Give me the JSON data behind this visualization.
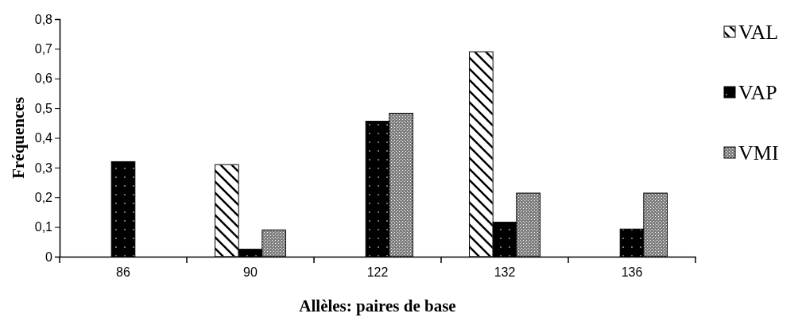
{
  "chart_data": {
    "type": "bar",
    "xlabel": "Allèles: paires de base",
    "ylabel": "Fréquences",
    "categories": [
      "86",
      "90",
      "122",
      "132",
      "136"
    ],
    "series": [
      {
        "name": "VAL",
        "color": "#ffffff",
        "values": [
          0,
          0.31,
          0,
          0.69,
          0
        ]
      },
      {
        "name": "VAP",
        "color": "#000000",
        "values": [
          0.32,
          0.025,
          0.456,
          0.116,
          0.093
        ]
      },
      {
        "name": "VMI",
        "color": "#808080",
        "values": [
          0,
          0.09,
          0.483,
          0.214,
          0.214
        ]
      }
    ],
    "ylim": [
      0,
      0.8
    ],
    "yticks": [
      0,
      {
        "value": 0.1,
        "label": "0,1"
      },
      {
        "value": 0.2,
        "label": "0,2"
      },
      {
        "value": 0.3,
        "label": "0,3"
      },
      {
        "value": 0.4,
        "label": "0,4"
      },
      {
        "value": 0.5,
        "label": "0,5"
      },
      {
        "value": 0.6,
        "label": "0,6"
      },
      {
        "value": 0.7,
        "label": "0,7"
      },
      {
        "value": 0.8,
        "label": "0,8"
      }
    ],
    "grid": false,
    "legend": "right"
  }
}
